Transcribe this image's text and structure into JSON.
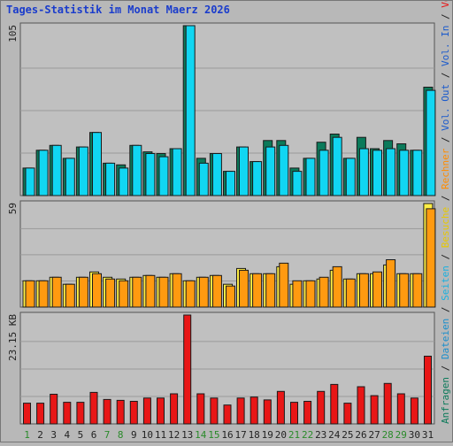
{
  "title": "Tages-Statistik im Monat Maerz 2026",
  "colors": {
    "background": "#b8b8b8",
    "plot_bg": "#c0c0c0",
    "title": "#1a3ccc",
    "anfragen": "#0b7a5a",
    "dateien": "#11d6f2",
    "besuche": "#ffee44",
    "rechner": "#ff9a10",
    "volumen": "#e81616",
    "weekend_label": "#2a8a2a",
    "weekday_label": "#222222"
  },
  "chart_data": [
    {
      "type": "bar",
      "panel": "top",
      "ymax_label": "105",
      "ylim": [
        0,
        105
      ],
      "categories": [
        "1",
        "2",
        "3",
        "4",
        "5",
        "6",
        "7",
        "8",
        "9",
        "10",
        "11",
        "12",
        "13",
        "14",
        "15",
        "16",
        "17",
        "18",
        "19",
        "20",
        "21",
        "22",
        "23",
        "24",
        "25",
        "26",
        "27",
        "28",
        "29",
        "30",
        "31"
      ],
      "series": [
        {
          "name": "Anfragen",
          "values": [
            17,
            28,
            31,
            23,
            30,
            39,
            20,
            19,
            31,
            27,
            26,
            29,
            105,
            23,
            26,
            15,
            30,
            21,
            34,
            34,
            17,
            23,
            33,
            38,
            23,
            36,
            29,
            34,
            32,
            28,
            67
          ]
        },
        {
          "name": "Dateien",
          "values": [
            17,
            28,
            31,
            23,
            30,
            39,
            20,
            17,
            31,
            26,
            24,
            29,
            105,
            20,
            26,
            15,
            30,
            21,
            30,
            31,
            15,
            23,
            28,
            36,
            23,
            29,
            28,
            29,
            28,
            28,
            65
          ]
        }
      ],
      "right_labels": [
        "Anfragen",
        "Dateien",
        "Seiten",
        "Besuche"
      ]
    },
    {
      "type": "bar",
      "panel": "middle",
      "ymax_label": "59",
      "ylim": [
        0,
        59
      ],
      "categories": [
        "1",
        "2",
        "3",
        "4",
        "5",
        "6",
        "7",
        "8",
        "9",
        "10",
        "11",
        "12",
        "13",
        "14",
        "15",
        "16",
        "17",
        "18",
        "19",
        "20",
        "21",
        "22",
        "23",
        "24",
        "25",
        "26",
        "27",
        "28",
        "29",
        "30",
        "31"
      ],
      "series": [
        {
          "name": "Besuche",
          "values": [
            15,
            15,
            17,
            13,
            17,
            20,
            17,
            16,
            17,
            18,
            17,
            19,
            15,
            17,
            18,
            13,
            22,
            19,
            19,
            23,
            13,
            15,
            16,
            21,
            16,
            19,
            19,
            24,
            19,
            19,
            59
          ]
        },
        {
          "name": "Rechner",
          "values": [
            15,
            15,
            17,
            13,
            17,
            19,
            16,
            15,
            17,
            18,
            17,
            19,
            15,
            17,
            18,
            12,
            21,
            19,
            19,
            25,
            15,
            15,
            17,
            23,
            16,
            19,
            20,
            27,
            19,
            19,
            56
          ]
        }
      ],
      "right_labels": [
        "Rechner",
        "Vol. Out",
        "Vol. In"
      ]
    },
    {
      "type": "bar",
      "panel": "bottom",
      "ymax_label": "23.15 KB",
      "ylim": [
        0,
        23.15
      ],
      "categories": [
        "1",
        "2",
        "3",
        "4",
        "5",
        "6",
        "7",
        "8",
        "9",
        "10",
        "11",
        "12",
        "13",
        "14",
        "15",
        "16",
        "17",
        "18",
        "19",
        "20",
        "21",
        "22",
        "23",
        "24",
        "25",
        "26",
        "27",
        "28",
        "29",
        "30",
        "31"
      ],
      "series": [
        {
          "name": "Volumen",
          "values": [
            4.4,
            4.4,
            6.3,
            4.6,
            4.6,
            6.7,
            5.2,
            5.0,
            4.8,
            5.5,
            5.5,
            6.4,
            23.15,
            6.4,
            5.5,
            4.0,
            5.5,
            5.7,
            5.1,
            6.9,
            4.6,
            4.8,
            6.9,
            8.4,
            4.4,
            7.9,
            6.0,
            8.6,
            6.4,
            5.5,
            14.4
          ]
        }
      ],
      "right_labels": [
        "Volumen"
      ]
    }
  ],
  "x_labels": [
    {
      "label": "1",
      "weekend": true
    },
    {
      "label": "2",
      "weekend": false
    },
    {
      "label": "3",
      "weekend": false
    },
    {
      "label": "4",
      "weekend": false
    },
    {
      "label": "5",
      "weekend": false
    },
    {
      "label": "6",
      "weekend": false
    },
    {
      "label": "7",
      "weekend": true
    },
    {
      "label": "8",
      "weekend": true
    },
    {
      "label": "9",
      "weekend": false
    },
    {
      "label": "10",
      "weekend": false
    },
    {
      "label": "11",
      "weekend": false
    },
    {
      "label": "12",
      "weekend": false
    },
    {
      "label": "13",
      "weekend": false
    },
    {
      "label": "14",
      "weekend": true
    },
    {
      "label": "15",
      "weekend": true
    },
    {
      "label": "16",
      "weekend": false
    },
    {
      "label": "17",
      "weekend": false
    },
    {
      "label": "18",
      "weekend": false
    },
    {
      "label": "19",
      "weekend": false
    },
    {
      "label": "20",
      "weekend": false
    },
    {
      "label": "21",
      "weekend": true
    },
    {
      "label": "22",
      "weekend": true
    },
    {
      "label": "23",
      "weekend": false
    },
    {
      "label": "24",
      "weekend": false
    },
    {
      "label": "25",
      "weekend": false
    },
    {
      "label": "26",
      "weekend": false
    },
    {
      "label": "27",
      "weekend": false
    },
    {
      "label": "28",
      "weekend": true
    },
    {
      "label": "29",
      "weekend": true
    },
    {
      "label": "30",
      "weekend": false
    },
    {
      "label": "31",
      "weekend": false
    }
  ],
  "right_axis": [
    {
      "text": "Anfragen",
      "color": "#0b7a5a"
    },
    {
      "text": " / ",
      "color": "#222222"
    },
    {
      "text": "Dateien",
      "color": "#1a8ecc"
    },
    {
      "text": " / ",
      "color": "#222222"
    },
    {
      "text": "Seiten",
      "color": "#1ab0e0"
    },
    {
      "text": " / ",
      "color": "#222222"
    },
    {
      "text": "Besuche",
      "color": "#e8c800"
    },
    {
      "text": " / ",
      "color": "#222222"
    },
    {
      "text": "Rechner",
      "color": "#ff8c00"
    },
    {
      "text": " / ",
      "color": "#222222"
    },
    {
      "text": "Vol. Out",
      "color": "#1a5acc"
    },
    {
      "text": " / ",
      "color": "#222222"
    },
    {
      "text": "Vol. In",
      "color": "#1a5acc"
    },
    {
      "text": " / ",
      "color": "#222222"
    },
    {
      "text": "Volumen",
      "color": "#e81616"
    }
  ]
}
